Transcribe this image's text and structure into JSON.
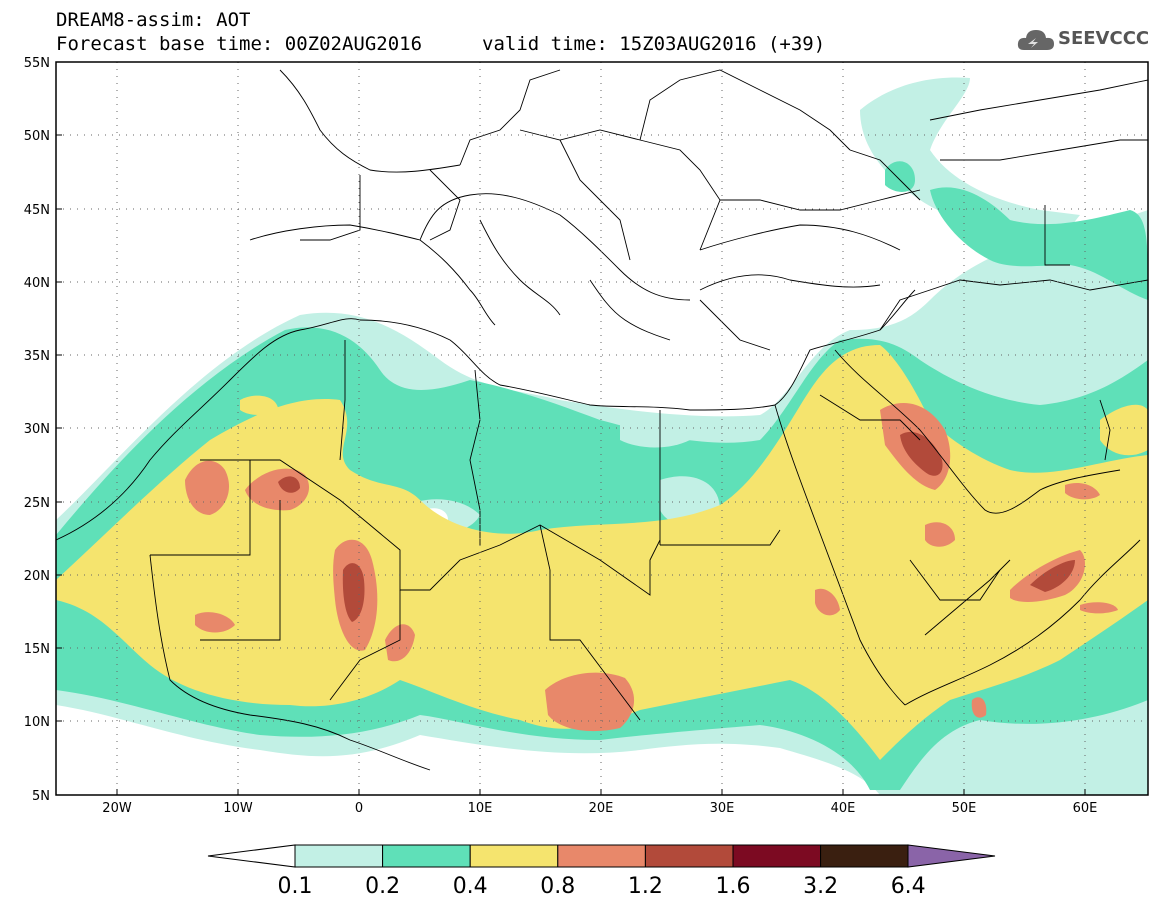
{
  "header": {
    "title": "DREAM8-assim: AOT",
    "base_time": "Forecast base time: 00Z02AUG2016",
    "valid_time": "valid time: 15Z03AUG2016 (+39)"
  },
  "logo": {
    "text": "SEEVCCC",
    "icon": "cloud-icon"
  },
  "map": {
    "lat_labels": [
      "55N",
      "50N",
      "45N",
      "40N",
      "35N",
      "30N",
      "25N",
      "20N",
      "15N",
      "10N",
      "5N"
    ],
    "lon_labels": [
      "20W",
      "10W",
      "0",
      "10E",
      "20E",
      "30E",
      "40E",
      "50E",
      "60E"
    ],
    "colors": {
      "c1": "#c2f0e5",
      "c2": "#5fe0b8",
      "c3": "#f5e46e",
      "c4": "#e8886a",
      "c5": "#b24a3a",
      "c6": "#7c0a22",
      "c7": "#3a1f10",
      "c8": "#8a64a8"
    }
  },
  "colorbar": {
    "labels": [
      "0.1",
      "0.2",
      "0.4",
      "0.8",
      "1.2",
      "1.6",
      "3.2",
      "6.4"
    ],
    "colors": [
      "#c2f0e5",
      "#5fe0b8",
      "#f5e46e",
      "#e8886a",
      "#b24a3a",
      "#7c0a22",
      "#3a1f10"
    ]
  }
}
